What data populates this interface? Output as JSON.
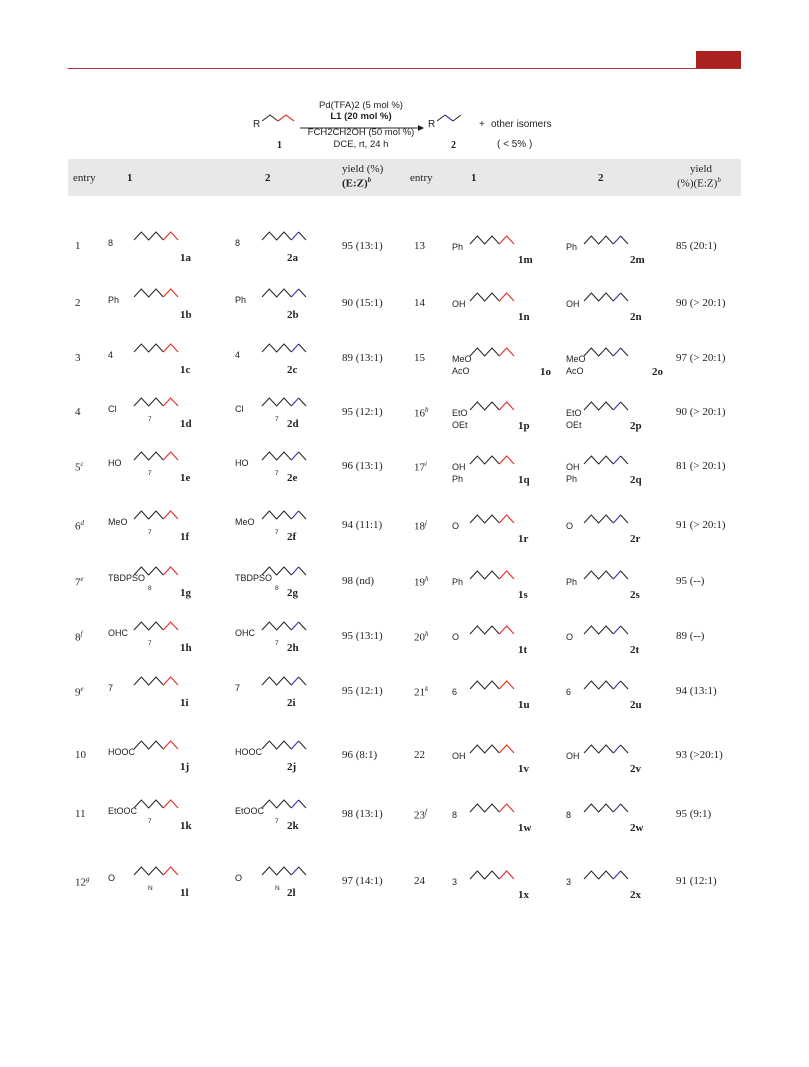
{
  "scheme": {
    "reactant_group": "R",
    "reactant_label": "1",
    "product_group": "R",
    "product_label": "2",
    "catalyst": "Pd(TFA)2 (5 mol %)",
    "ligand": "L1 (20 mol %)",
    "additive": "FCH2CH2OH (50 mol %)",
    "conditions": "DCE, rt, 24 h",
    "plus": "+",
    "other": "other isomers",
    "other_amount": "( < 5% )"
  },
  "headers": {
    "entry": "entry",
    "col1": "1",
    "col2": "2",
    "yield_left": "yield (%)",
    "ez_left": "(E:Z)",
    "ez_left_sup": "b",
    "yield_right_a": "yield",
    "yield_right_b": "(%)(E:Z)",
    "ez_right_sup": "b"
  },
  "left_rows": [
    {
      "entry": "1",
      "sup": "",
      "r": "1a",
      "p": "2a",
      "yield": "95 (13:1)"
    },
    {
      "entry": "2",
      "sup": "",
      "r": "1b",
      "p": "2b",
      "yield": "90 (15:1)"
    },
    {
      "entry": "3",
      "sup": "",
      "r": "1c",
      "p": "2c",
      "yield": "89 (13:1)"
    },
    {
      "entry": "4",
      "sup": "",
      "r": "1d",
      "p": "2d",
      "yield": "95 (12:1)"
    },
    {
      "entry": "5",
      "sup": "c",
      "r": "1e",
      "p": "2e",
      "yield": "96 (13:1)"
    },
    {
      "entry": "6",
      "sup": "d",
      "r": "1f",
      "p": "2f",
      "yield": "94 (11:1)"
    },
    {
      "entry": "7",
      "sup": "e",
      "r": "1g",
      "p": "2g",
      "yield": "98 (nd)"
    },
    {
      "entry": "8",
      "sup": "f",
      "r": "1h",
      "p": "2h",
      "yield": "95 (13:1)"
    },
    {
      "entry": "9",
      "sup": "e",
      "r": "1i",
      "p": "2i",
      "yield": "95 (12:1)"
    },
    {
      "entry": "10",
      "sup": "",
      "r": "1j",
      "p": "2j",
      "yield": "96 (8:1)"
    },
    {
      "entry": "11",
      "sup": "",
      "r": "1k",
      "p": "2k",
      "yield": "98 (13:1)"
    },
    {
      "entry": "12",
      "sup": "g",
      "r": "1l",
      "p": "2l",
      "yield": "97 (14:1)"
    }
  ],
  "right_rows": [
    {
      "entry": "13",
      "sup": "",
      "r": "1m",
      "p": "2m",
      "yield": "85 (20:1)"
    },
    {
      "entry": "14",
      "sup": "",
      "r": "1n",
      "p": "2n",
      "yield": "90 (> 20:1)"
    },
    {
      "entry": "15",
      "sup": "",
      "r": "1o",
      "p": "2o",
      "yield": "97 (> 20:1)"
    },
    {
      "entry": "16",
      "sup": "b",
      "r": "1p",
      "p": "2p",
      "yield": "90 (> 20:1)"
    },
    {
      "entry": "17",
      "sup": "i",
      "r": "1q",
      "p": "2q",
      "yield": "81 (> 20:1)"
    },
    {
      "entry": "18",
      "sup": "j",
      "r": "1r",
      "p": "2r",
      "yield": "91 (> 20:1)"
    },
    {
      "entry": "19",
      "sup": "h",
      "r": "1s",
      "p": "2s",
      "yield": "95 (--)"
    },
    {
      "entry": "20",
      "sup": "h",
      "r": "1t",
      "p": "2t",
      "yield": "89 (--)"
    },
    {
      "entry": "21",
      "sup": "k",
      "r": "1u",
      "p": "2u",
      "yield": "94 (13:1)"
    },
    {
      "entry": "22",
      "sup": "",
      "r": "1v",
      "p": "2v",
      "yield": "93 (>20:1)"
    },
    {
      "entry": "23",
      "sup": "f",
      "r": "1w",
      "p": "2w",
      "yield": "95 (9:1)"
    },
    {
      "entry": "24",
      "sup": "",
      "r": "1x",
      "p": "2x",
      "yield": "91 (12:1)"
    }
  ],
  "struct_text": {
    "s8": "8",
    "s4": "4",
    "s7": "7",
    "s6": "6",
    "s3": "3",
    "ph": "Ph",
    "cl": "Cl",
    "ho": "HO",
    "meo": "MeO",
    "tbdpso": "TBDPSO",
    "ohc": "OHC",
    "hooc": "HOOC",
    "etooc": "EtOOC",
    "o": "O",
    "n": "N",
    "oh": "OH",
    "aco": "AcO",
    "eto": "EtO",
    "p": "P",
    "oet": "OEt"
  }
}
